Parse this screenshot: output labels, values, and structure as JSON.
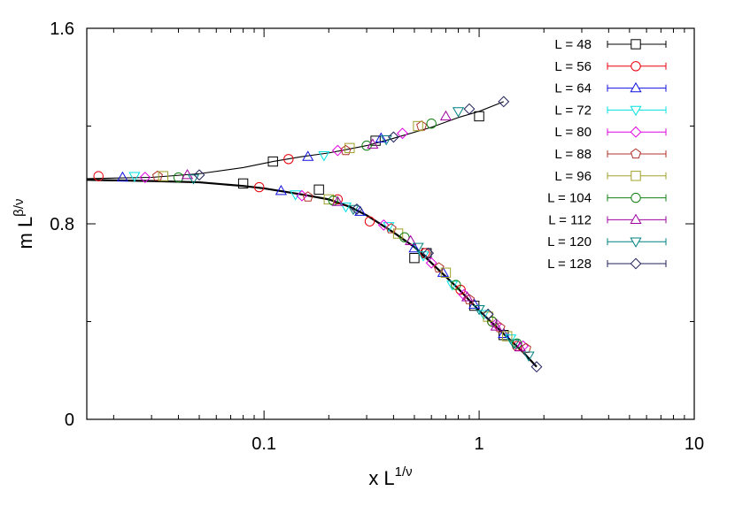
{
  "chart_data": {
    "type": "scatter",
    "x_scale": "log",
    "xlim": [
      0.015,
      10
    ],
    "ylim": [
      0,
      1.6
    ],
    "x_ticks": [
      {
        "value": 0.1,
        "label": "0.1"
      },
      {
        "value": 1,
        "label": "1"
      },
      {
        "value": 10,
        "label": "10"
      }
    ],
    "y_ticks": [
      {
        "value": 0,
        "label": "0"
      },
      {
        "value": 0.8,
        "label": "0.8"
      },
      {
        "value": 1.6,
        "label": "1.6"
      }
    ],
    "xlabel": {
      "base": "x L",
      "sup": "1/ν"
    },
    "ylabel": {
      "base": "m L",
      "sup": "β/ν"
    },
    "grid": false,
    "legend_position": "top-right",
    "series": [
      {
        "name": "L = 48",
        "marker": "square",
        "color": "#000000",
        "points": [
          [
            0.08,
            0.965
          ],
          [
            0.11,
            1.055
          ],
          [
            0.18,
            0.94
          ],
          [
            0.33,
            1.14
          ],
          [
            0.5,
            0.66
          ],
          [
            0.57,
            0.68
          ],
          [
            0.95,
            0.465
          ],
          [
            1.0,
            1.24
          ],
          [
            1.3,
            0.345
          ]
        ]
      },
      {
        "name": "L = 56",
        "marker": "circle",
        "color": "#e8000b",
        "points": [
          [
            0.017,
            0.995
          ],
          [
            0.095,
            0.95
          ],
          [
            0.13,
            1.065
          ],
          [
            0.22,
            0.9
          ],
          [
            0.31,
            0.81
          ],
          [
            0.56,
            0.68
          ],
          [
            0.82,
            0.53
          ],
          [
            1.15,
            0.4
          ],
          [
            1.5,
            0.3
          ]
        ]
      },
      {
        "name": "L = 64",
        "marker": "triangle-up",
        "color": "#1010e0",
        "points": [
          [
            0.022,
            0.99
          ],
          [
            0.12,
            0.935
          ],
          [
            0.16,
            1.075
          ],
          [
            0.28,
            0.85
          ],
          [
            0.35,
            1.15
          ],
          [
            0.5,
            0.7
          ],
          [
            0.68,
            0.6
          ],
          [
            0.95,
            0.47
          ],
          [
            1.3,
            0.35
          ]
        ]
      },
      {
        "name": "L = 72",
        "marker": "triangle-down",
        "color": "#00e0e0",
        "points": [
          [
            0.025,
            0.995
          ],
          [
            0.14,
            0.92
          ],
          [
            0.19,
            1.08
          ],
          [
            0.24,
            0.87
          ],
          [
            0.38,
            0.79
          ],
          [
            0.55,
            0.67
          ],
          [
            0.75,
            0.55
          ],
          [
            1.05,
            0.43
          ],
          [
            1.4,
            0.33
          ]
        ]
      },
      {
        "name": "L = 80",
        "marker": "diamond",
        "color": "#e000e0",
        "points": [
          [
            0.028,
            0.99
          ],
          [
            0.15,
            0.915
          ],
          [
            0.22,
            1.1
          ],
          [
            0.36,
            0.795
          ],
          [
            0.44,
            1.17
          ],
          [
            0.6,
            0.64
          ],
          [
            0.85,
            0.51
          ],
          [
            1.2,
            0.39
          ],
          [
            1.6,
            0.3
          ]
        ]
      },
      {
        "name": "L = 88",
        "marker": "pentagon",
        "color": "#b03028",
        "points": [
          [
            0.032,
            0.995
          ],
          [
            0.16,
            0.91
          ],
          [
            0.24,
            1.1
          ],
          [
            0.39,
            0.78
          ],
          [
            0.54,
            1.2
          ],
          [
            0.65,
            0.62
          ],
          [
            0.9,
            0.49
          ],
          [
            1.25,
            0.375
          ],
          [
            1.65,
            0.29
          ]
        ]
      },
      {
        "name": "L = 96",
        "marker": "square",
        "color": "#a0a028",
        "points": [
          [
            0.034,
            0.995
          ],
          [
            0.2,
            0.9
          ],
          [
            0.25,
            1.11
          ],
          [
            0.42,
            0.76
          ],
          [
            0.52,
            1.2
          ],
          [
            0.7,
            0.6
          ],
          [
            1.1,
            0.42
          ],
          [
            1.35,
            0.34
          ]
        ]
      },
      {
        "name": "L = 104",
        "marker": "circle",
        "color": "#108010",
        "points": [
          [
            0.04,
            0.99
          ],
          [
            0.21,
            0.895
          ],
          [
            0.3,
            1.12
          ],
          [
            0.45,
            0.745
          ],
          [
            0.6,
            1.21
          ],
          [
            0.78,
            0.55
          ],
          [
            1.15,
            0.4
          ],
          [
            1.5,
            0.31
          ]
        ]
      },
      {
        "name": "L = 112",
        "marker": "triangle-up",
        "color": "#a000a0",
        "points": [
          [
            0.044,
            1.0
          ],
          [
            0.22,
            0.89
          ],
          [
            0.32,
            1.125
          ],
          [
            0.48,
            0.73
          ],
          [
            0.7,
            1.24
          ],
          [
            0.88,
            0.5
          ],
          [
            1.2,
            0.38
          ],
          [
            1.55,
            0.295
          ]
        ]
      },
      {
        "name": "L = 120",
        "marker": "triangle-down",
        "color": "#008080",
        "points": [
          [
            0.047,
            0.985
          ],
          [
            0.26,
            0.86
          ],
          [
            0.37,
            1.145
          ],
          [
            0.52,
            0.705
          ],
          [
            0.8,
            1.26
          ],
          [
            1.0,
            0.45
          ],
          [
            1.45,
            0.31
          ],
          [
            1.7,
            0.26
          ]
        ]
      },
      {
        "name": "L = 128",
        "marker": "diamond",
        "color": "#20205a",
        "points": [
          [
            0.05,
            1.0
          ],
          [
            0.27,
            0.86
          ],
          [
            0.4,
            1.155
          ],
          [
            0.58,
            0.68
          ],
          [
            0.9,
            1.27
          ],
          [
            1.1,
            0.43
          ],
          [
            1.3,
            1.3
          ],
          [
            1.85,
            0.215
          ]
        ]
      }
    ],
    "curves": [
      {
        "style": "thin",
        "color": "#000000",
        "points": [
          [
            0.015,
            0.985
          ],
          [
            0.03,
            0.99
          ],
          [
            0.05,
            1.005
          ],
          [
            0.08,
            1.03
          ],
          [
            0.11,
            1.055
          ],
          [
            0.15,
            1.075
          ],
          [
            0.2,
            1.09
          ],
          [
            0.3,
            1.12
          ],
          [
            0.4,
            1.15
          ],
          [
            0.6,
            1.195
          ],
          [
            0.8,
            1.235
          ],
          [
            1.0,
            1.26
          ],
          [
            1.3,
            1.3
          ]
        ]
      },
      {
        "style": "thick",
        "color": "#000000",
        "points": [
          [
            0.015,
            0.98
          ],
          [
            0.03,
            0.975
          ],
          [
            0.05,
            0.97
          ],
          [
            0.08,
            0.955
          ],
          [
            0.1,
            0.945
          ],
          [
            0.15,
            0.92
          ],
          [
            0.2,
            0.9
          ],
          [
            0.25,
            0.87
          ],
          [
            0.3,
            0.835
          ],
          [
            0.4,
            0.765
          ],
          [
            0.5,
            0.705
          ],
          [
            0.6,
            0.64
          ],
          [
            0.8,
            0.535
          ],
          [
            1.0,
            0.445
          ],
          [
            1.3,
            0.35
          ],
          [
            1.6,
            0.275
          ],
          [
            1.85,
            0.215
          ]
        ]
      }
    ]
  }
}
